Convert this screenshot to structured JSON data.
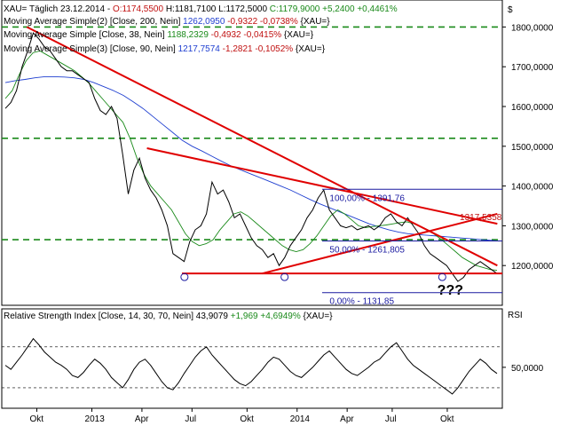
{
  "header": {
    "symbol_line": {
      "prefix": "XAU= Täglich  23.12.2014 -",
      "open": "O:1174,5500",
      "high": "H:1181,7100",
      "low": "L:1172,5000",
      "close": "C:1179,9000",
      "change": "+5,2400",
      "change_pct": "+0,4461%"
    },
    "ma_lines": [
      {
        "label": "Moving Average Simple(2) [Close, 200, Nein]",
        "value": "1262,0950",
        "chg": "-0,9322",
        "pct": "-0,0738%",
        "tag": "{XAU=}",
        "color": "#1f3fd0"
      },
      {
        "label": "Moving Average Simple [Close, 38, Nein]",
        "value": "1188,2329",
        "chg": "-0,4932",
        "pct": "-0,0415%",
        "tag": "{XAU=}",
        "color": "#1a8a1a"
      },
      {
        "label": "Moving Average Simple(3) [Close, 90, Nein]",
        "value": "1217,7574",
        "chg": "-1,2821",
        "pct": "-0,1052%",
        "tag": "{XAU=}",
        "color": "#c01010"
      }
    ],
    "currency": "$"
  },
  "rsi_header": {
    "label": "Relative Strength Index [Close, 14, 30, 70, Nein]",
    "value": "43,9079",
    "chg": "+1,969",
    "pct": "+4,6949%",
    "tag": "{XAU=}"
  },
  "chart_data": [
    {
      "type": "line",
      "y_unit": "$",
      "ylim": [
        1100,
        1850
      ],
      "yticks": [
        1200,
        1300,
        1400,
        1500,
        1600,
        1700,
        1800
      ],
      "ytick_labels": [
        "1200,0000",
        "1300,0000",
        "1400,0000",
        "1500,0000",
        "1600,0000",
        "1700,0000",
        "1800,0000"
      ],
      "x_tick_labels": [
        "Okt",
        "2013",
        "Apr",
        "Jul",
        "Okt",
        "2014",
        "Apr",
        "Jul",
        "Okt"
      ],
      "series": [
        {
          "name": "XAU=",
          "color": "#000000",
          "values": [
            1595,
            1610,
            1640,
            1700,
            1740,
            1785,
            1770,
            1750,
            1740,
            1720,
            1700,
            1690,
            1690,
            1680,
            1670,
            1660,
            1620,
            1590,
            1580,
            1600,
            1570,
            1480,
            1380,
            1440,
            1470,
            1420,
            1390,
            1370,
            1340,
            1300,
            1230,
            1220,
            1210,
            1260,
            1290,
            1300,
            1330,
            1410,
            1380,
            1390,
            1360,
            1320,
            1330,
            1300,
            1270,
            1250,
            1240,
            1220,
            1230,
            1200,
            1220,
            1250,
            1270,
            1290,
            1320,
            1340,
            1370,
            1390,
            1340,
            1320,
            1300,
            1295,
            1300,
            1290,
            1295,
            1300,
            1290,
            1300,
            1320,
            1330,
            1310,
            1300,
            1320,
            1300,
            1280,
            1250,
            1230,
            1220,
            1210,
            1200,
            1180,
            1160,
            1170,
            1190,
            1200,
            1210,
            1200,
            1190,
            1180
          ]
        },
        {
          "name": "SMA 200",
          "color": "#1f3fd0",
          "values": [
            1660,
            1665,
            1668,
            1672,
            1675,
            1675,
            1674,
            1672,
            1668,
            1660,
            1650,
            1640,
            1628,
            1612,
            1595,
            1575,
            1555,
            1535,
            1515,
            1500,
            1488,
            1475,
            1462,
            1450,
            1440,
            1430,
            1420,
            1410,
            1400,
            1390,
            1378,
            1366,
            1355,
            1345,
            1335,
            1325,
            1315,
            1305,
            1297,
            1290,
            1284,
            1280,
            1278,
            1276,
            1274,
            1272,
            1270,
            1268,
            1266,
            1264,
            1262
          ]
        },
        {
          "name": "SMA 38",
          "color": "#1a8a1a",
          "values": [
            1620,
            1640,
            1680,
            1715,
            1735,
            1740,
            1730,
            1720,
            1710,
            1700,
            1690,
            1675,
            1660,
            1640,
            1620,
            1600,
            1580,
            1560,
            1520,
            1470,
            1430,
            1400,
            1380,
            1360,
            1340,
            1310,
            1280,
            1260,
            1250,
            1255,
            1265,
            1290,
            1310,
            1330,
            1335,
            1325,
            1310,
            1295,
            1280,
            1265,
            1250,
            1240,
            1235,
            1240,
            1255,
            1275,
            1300,
            1325,
            1340,
            1330,
            1315,
            1300,
            1295,
            1298,
            1300,
            1302,
            1305,
            1308,
            1310,
            1305,
            1298,
            1290,
            1278,
            1265,
            1250,
            1235,
            1220,
            1210,
            1200,
            1195,
            1190,
            1188
          ]
        }
      ],
      "horizontal_levels": [
        1800,
        1520,
        1265
      ],
      "support_level": 1180,
      "trendlines": [
        {
          "from": [
            0.05,
            1800
          ],
          "to": [
            0.99,
            1200
          ]
        },
        {
          "from": [
            0.29,
            1495
          ],
          "to": [
            0.99,
            1305
          ]
        },
        {
          "from": [
            0.52,
            1180
          ],
          "to": [
            0.99,
            1330
          ]
        }
      ],
      "fibonacci": [
        {
          "label": "100,00% - 1391,76",
          "value": 1391.76
        },
        {
          "label": "50,00% - 1261,805",
          "value": 1261.805
        },
        {
          "label": "0,00% - 1131,85",
          "value": 1131.85
        }
      ],
      "price_label": "1317,5358",
      "annotation": "???"
    },
    {
      "type": "line",
      "ylim": [
        10,
        95
      ],
      "yticks": [
        50
      ],
      "ytick_labels": [
        "50,0000"
      ],
      "y_unit": "RSI",
      "series": [
        {
          "name": "RSI 14",
          "color": "#000000",
          "values": [
            52,
            48,
            55,
            62,
            70,
            78,
            72,
            65,
            60,
            55,
            52,
            48,
            42,
            40,
            45,
            52,
            58,
            54,
            48,
            40,
            35,
            30,
            38,
            48,
            55,
            58,
            52,
            44,
            36,
            30,
            28,
            35,
            44,
            52,
            60,
            66,
            70,
            62,
            56,
            50,
            44,
            38,
            34,
            32,
            36,
            42,
            48,
            55,
            60,
            58,
            52,
            46,
            42,
            40,
            45,
            50,
            56,
            62,
            66,
            60,
            54,
            48,
            44,
            42,
            46,
            50,
            55,
            58,
            64,
            70,
            74,
            66,
            58,
            52,
            48,
            44,
            40,
            36,
            32,
            28,
            24,
            30,
            38,
            46,
            52,
            58,
            54,
            48,
            44
          ]
        }
      ]
    }
  ]
}
